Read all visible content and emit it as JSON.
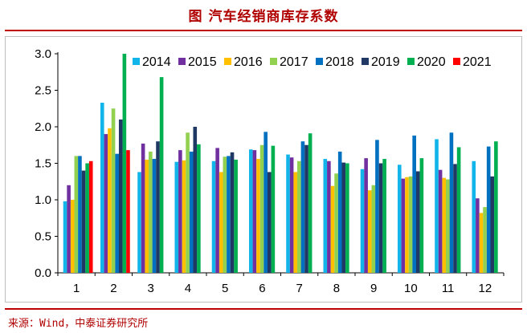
{
  "header": {
    "title": "图  汽车经销商库存系数"
  },
  "footer": {
    "source": "来源：Wind，中泰证券研究所"
  },
  "colors": {
    "accent": "#c00000",
    "axis": "#000000",
    "frame": "#bfbfbf"
  },
  "chart_data": {
    "type": "bar",
    "title": "",
    "xlabel": "",
    "ylabel": "",
    "ylim": [
      0,
      3.0
    ],
    "yticks": [
      "0.0",
      "0.5",
      "1.0",
      "1.5",
      "2.0",
      "2.5",
      "3.0"
    ],
    "grid": false,
    "legend_position": "top-right",
    "categories": [
      "1",
      "2",
      "3",
      "4",
      "5",
      "6",
      "7",
      "8",
      "9",
      "10",
      "11",
      "12"
    ],
    "series": [
      {
        "name": "2014",
        "color": "#12b5ea",
        "values": [
          0.98,
          2.33,
          1.38,
          1.52,
          1.53,
          1.69,
          1.62,
          1.56,
          1.42,
          1.48,
          1.83,
          1.53
        ]
      },
      {
        "name": "2015",
        "color": "#7030a0",
        "values": [
          1.2,
          1.9,
          1.77,
          1.68,
          1.71,
          1.68,
          1.58,
          1.53,
          1.57,
          1.29,
          1.41,
          1.02
        ]
      },
      {
        "name": "2016",
        "color": "#ffc000",
        "values": [
          1.0,
          1.98,
          1.55,
          1.54,
          1.38,
          1.56,
          1.38,
          1.19,
          1.13,
          1.31,
          1.3,
          0.82
        ]
      },
      {
        "name": "2017",
        "color": "#92d050",
        "values": [
          1.6,
          2.25,
          1.66,
          1.92,
          1.59,
          1.75,
          1.53,
          1.36,
          1.2,
          1.32,
          1.28,
          0.9
        ]
      },
      {
        "name": "2018",
        "color": "#0070c0",
        "values": [
          1.6,
          1.63,
          1.56,
          1.66,
          1.6,
          1.93,
          1.8,
          1.66,
          1.82,
          1.88,
          1.92,
          1.73
        ]
      },
      {
        "name": "2019",
        "color": "#1f3864",
        "values": [
          1.4,
          2.1,
          1.8,
          2.0,
          1.65,
          1.38,
          1.75,
          1.51,
          1.5,
          1.39,
          1.49,
          1.32
        ]
      },
      {
        "name": "2020",
        "color": "#00b050",
        "values": [
          1.5,
          3.0,
          2.68,
          1.76,
          1.55,
          1.74,
          1.91,
          1.5,
          1.56,
          1.57,
          1.72,
          1.8
        ]
      },
      {
        "name": "2021",
        "color": "#ff0000",
        "values": [
          1.53,
          1.68,
          null,
          null,
          null,
          null,
          null,
          null,
          null,
          null,
          null,
          null
        ]
      }
    ]
  }
}
